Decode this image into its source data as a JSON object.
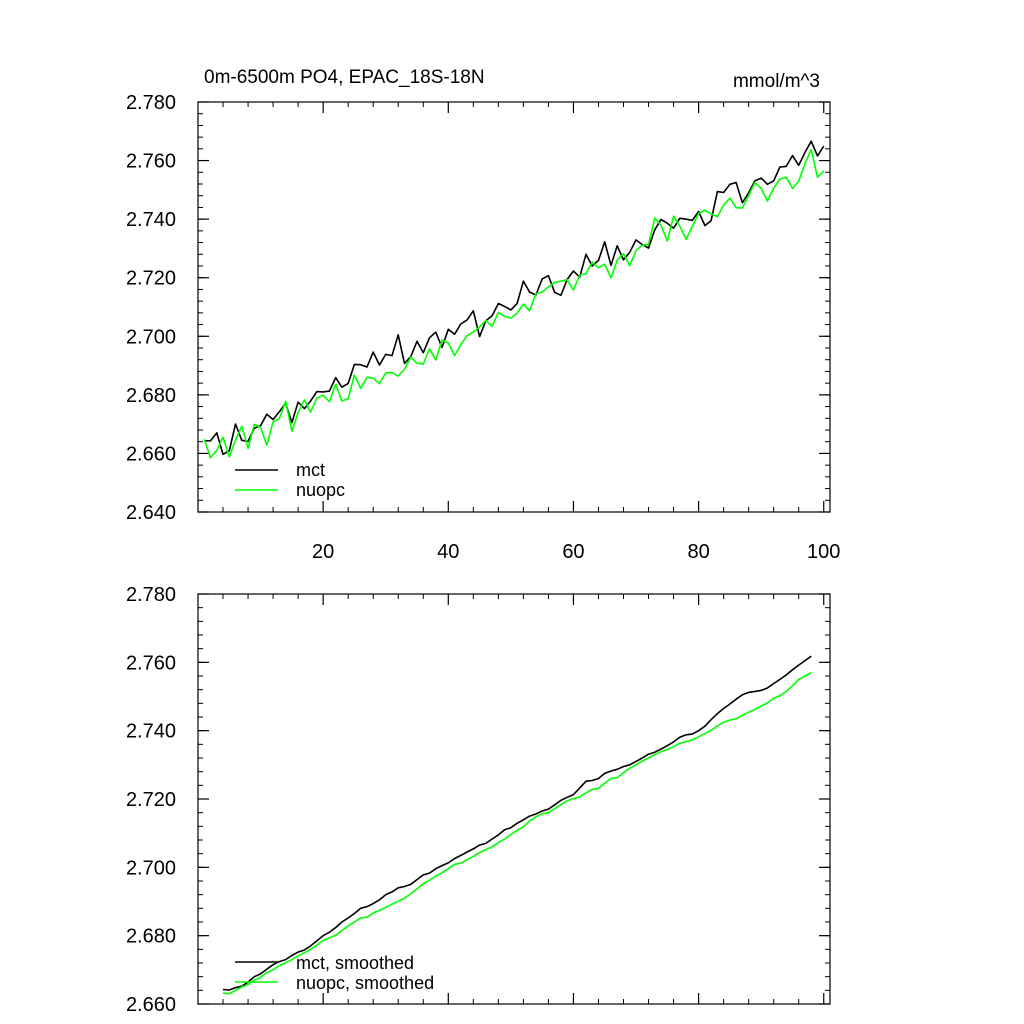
{
  "chart_data": [
    {
      "type": "line",
      "title": "0m-6500m PO4, EPAC_18S-18N",
      "units": "mmol/m^3",
      "xlim": [
        0,
        101
      ],
      "ylim": [
        2.64,
        2.78
      ],
      "x_ticks": [
        20,
        40,
        60,
        80,
        100
      ],
      "x_tick_labels": [
        "20",
        "40",
        "60",
        "80",
        "100"
      ],
      "y_ticks": [
        2.64,
        2.66,
        2.68,
        2.7,
        2.72,
        2.74,
        2.76,
        2.78
      ],
      "y_tick_labels": [
        "2.640",
        "2.660",
        "2.680",
        "2.700",
        "2.720",
        "2.740",
        "2.760",
        "2.780"
      ],
      "legend_position": "bottom-left",
      "x": [
        1,
        2,
        3,
        4,
        5,
        6,
        7,
        8,
        9,
        10,
        11,
        12,
        13,
        14,
        15,
        16,
        17,
        18,
        19,
        20,
        21,
        22,
        23,
        24,
        25,
        26,
        27,
        28,
        29,
        30,
        31,
        32,
        33,
        34,
        35,
        36,
        37,
        38,
        39,
        40,
        41,
        42,
        43,
        44,
        45,
        46,
        47,
        48,
        49,
        50,
        51,
        52,
        53,
        54,
        55,
        56,
        57,
        58,
        59,
        60,
        61,
        62,
        63,
        64,
        65,
        66,
        67,
        68,
        69,
        70,
        71,
        72,
        73,
        74,
        75,
        76,
        77,
        78,
        79,
        80,
        81,
        82,
        83,
        84,
        85,
        86,
        87,
        88,
        89,
        90,
        91,
        92,
        93,
        94,
        95,
        96,
        97,
        98,
        99,
        100
      ],
      "series": [
        {
          "name": "mct",
          "color": "#000000",
          "values": [
            2.6643,
            2.6643,
            2.667,
            2.6597,
            2.6609,
            2.67,
            2.6645,
            2.6641,
            2.6686,
            2.6695,
            2.6734,
            2.6716,
            2.6742,
            2.6772,
            2.6705,
            2.6775,
            2.6753,
            2.6779,
            2.6811,
            2.681,
            2.6813,
            2.6859,
            2.6826,
            2.6839,
            2.6904,
            2.6903,
            2.6895,
            2.6946,
            2.6902,
            2.6938,
            2.6934,
            2.7005,
            2.6907,
            2.6931,
            2.6983,
            2.6944,
            2.6995,
            2.7014,
            2.6962,
            2.7024,
            2.7007,
            2.7042,
            2.7056,
            2.7087,
            2.6999,
            2.7053,
            2.707,
            2.7112,
            2.7102,
            2.709,
            2.7112,
            2.7188,
            2.7151,
            2.7141,
            2.7196,
            2.7207,
            2.715,
            2.714,
            2.7194,
            2.7223,
            2.7202,
            2.728,
            2.724,
            2.7259,
            2.7323,
            2.7242,
            2.7309,
            2.7261,
            2.7287,
            2.7329,
            2.7313,
            2.7301,
            2.7364,
            2.7399,
            2.7386,
            2.7369,
            2.7403,
            2.74,
            2.7396,
            2.7426,
            2.7378,
            2.7395,
            2.7494,
            2.7491,
            2.7519,
            2.7525,
            2.7456,
            2.749,
            2.7531,
            2.754,
            2.7519,
            2.7531,
            2.7578,
            2.758,
            2.7617,
            2.7584,
            2.7628,
            2.7666,
            2.7616,
            2.7649
          ]
        },
        {
          "name": "nuopc",
          "color": "#00ff00",
          "values": [
            2.6649,
            2.6585,
            2.6611,
            2.6655,
            2.6588,
            2.6646,
            2.6693,
            2.6617,
            2.6699,
            2.6689,
            2.6628,
            2.6708,
            2.6718,
            2.6778,
            2.6676,
            2.6739,
            2.6783,
            2.6741,
            2.6789,
            2.6799,
            2.6777,
            2.6836,
            2.6779,
            2.6787,
            2.6868,
            2.6822,
            2.686,
            2.6857,
            2.6838,
            2.6875,
            2.6876,
            2.6864,
            2.6888,
            2.6929,
            2.6908,
            2.6905,
            2.6957,
            2.6919,
            2.6987,
            2.6977,
            2.6934,
            2.6972,
            2.7002,
            2.7015,
            2.7032,
            2.7054,
            2.7034,
            2.7081,
            2.7068,
            2.7062,
            2.7079,
            2.711,
            2.7087,
            2.7146,
            2.7151,
            2.7169,
            2.7184,
            2.7188,
            2.7193,
            2.7158,
            2.7209,
            2.7214,
            2.7253,
            2.7234,
            2.7246,
            2.7199,
            2.726,
            2.7282,
            2.7241,
            2.7293,
            2.7311,
            2.7313,
            2.7404,
            2.7379,
            2.7325,
            2.741,
            2.7376,
            2.7331,
            2.7375,
            2.742,
            2.7431,
            2.7418,
            2.7408,
            2.7448,
            2.7472,
            2.7439,
            2.7438,
            2.7481,
            2.7525,
            2.7505,
            2.7462,
            2.7506,
            2.7537,
            2.7543,
            2.7505,
            2.753,
            2.759,
            2.7637,
            2.7543,
            2.7565
          ]
        }
      ]
    },
    {
      "type": "line",
      "title": "",
      "xlim": [
        0,
        101
      ],
      "ylim": [
        2.66,
        2.78
      ],
      "y_ticks": [
        2.66,
        2.68,
        2.7,
        2.72,
        2.74,
        2.76,
        2.78
      ],
      "y_tick_labels": [
        "2.660",
        "2.680",
        "2.700",
        "2.720",
        "2.740",
        "2.760",
        "2.780"
      ],
      "legend_position": "bottom-left",
      "x": [
        4,
        5,
        6,
        7,
        8,
        9,
        10,
        11,
        12,
        13,
        14,
        15,
        16,
        17,
        18,
        19,
        20,
        21,
        22,
        23,
        24,
        25,
        26,
        27,
        28,
        29,
        30,
        31,
        32,
        33,
        34,
        35,
        36,
        37,
        38,
        39,
        40,
        41,
        42,
        43,
        44,
        45,
        46,
        47,
        48,
        49,
        50,
        51,
        52,
        53,
        54,
        55,
        56,
        57,
        58,
        59,
        60,
        61,
        62,
        63,
        64,
        65,
        66,
        67,
        68,
        69,
        70,
        71,
        72,
        73,
        74,
        75,
        76,
        77,
        78,
        79,
        80,
        81,
        82,
        83,
        84,
        85,
        86,
        87,
        88,
        89,
        90,
        91,
        92,
        93,
        94,
        95,
        96,
        97,
        98
      ],
      "series": [
        {
          "name": "mct, smoothed",
          "color": "#000000",
          "values": [
            2.6642,
            2.6641,
            2.6648,
            2.6652,
            2.6664,
            2.668,
            2.6688,
            2.6702,
            2.6715,
            2.6724,
            2.673,
            2.6742,
            2.6752,
            2.6758,
            2.677,
            2.6785,
            2.68,
            2.681,
            2.6824,
            2.684,
            2.6852,
            2.6865,
            2.688,
            2.6885,
            2.6894,
            2.6905,
            2.692,
            2.6928,
            2.694,
            2.6944,
            2.695,
            2.6964,
            2.6978,
            2.6983,
            2.6996,
            2.7005,
            2.7013,
            2.7026,
            2.7035,
            2.7045,
            2.7054,
            2.7065,
            2.707,
            2.7083,
            2.7095,
            2.711,
            2.7116,
            2.7129,
            2.7139,
            2.715,
            2.7156,
            2.7165,
            2.717,
            2.7183,
            2.7196,
            2.7205,
            2.7213,
            2.7232,
            2.7252,
            2.7254,
            2.726,
            2.7275,
            2.7282,
            2.7287,
            2.7295,
            2.73,
            2.731,
            2.732,
            2.7331,
            2.7337,
            2.7346,
            2.7356,
            2.7367,
            2.7381,
            2.7388,
            2.739,
            2.74,
            2.7413,
            2.7432,
            2.745,
            2.7465,
            2.7478,
            2.7492,
            2.7505,
            2.7512,
            2.7515,
            2.7518,
            2.7525,
            2.7538,
            2.755,
            2.7563,
            2.7578,
            2.7592,
            2.7605,
            2.7618
          ]
        },
        {
          "name": "nuopc, smoothed",
          "color": "#00ff00",
          "values": [
            2.6632,
            2.663,
            2.664,
            2.665,
            2.6657,
            2.667,
            2.6678,
            2.6692,
            2.67,
            2.6712,
            2.6721,
            2.673,
            2.6741,
            2.675,
            2.676,
            2.6772,
            2.6786,
            2.6794,
            2.6801,
            2.6815,
            2.6829,
            2.684,
            2.6852,
            2.6854,
            2.6866,
            2.6874,
            2.6883,
            2.6892,
            2.6901,
            2.691,
            2.6923,
            2.6937,
            2.6952,
            2.6962,
            2.6974,
            2.6984,
            2.6996,
            2.7009,
            2.7012,
            2.7022,
            2.7032,
            2.7043,
            2.7052,
            2.706,
            2.7072,
            2.7083,
            2.7096,
            2.7108,
            2.7119,
            2.7135,
            2.7148,
            2.7157,
            2.716,
            2.7172,
            2.7183,
            2.7195,
            2.7201,
            2.7206,
            2.7218,
            2.7228,
            2.7231,
            2.7246,
            2.726,
            2.7262,
            2.7277,
            2.729,
            2.73,
            2.7311,
            2.732,
            2.733,
            2.7338,
            2.7345,
            2.7353,
            2.7363,
            2.7368,
            2.7373,
            2.7382,
            2.7391,
            2.7401,
            2.7414,
            2.7425,
            2.7431,
            2.7435,
            2.7445,
            2.7454,
            2.7462,
            2.7472,
            2.7481,
            2.7495,
            2.7502,
            2.7515,
            2.7532,
            2.755,
            2.756,
            2.757
          ]
        }
      ]
    }
  ]
}
